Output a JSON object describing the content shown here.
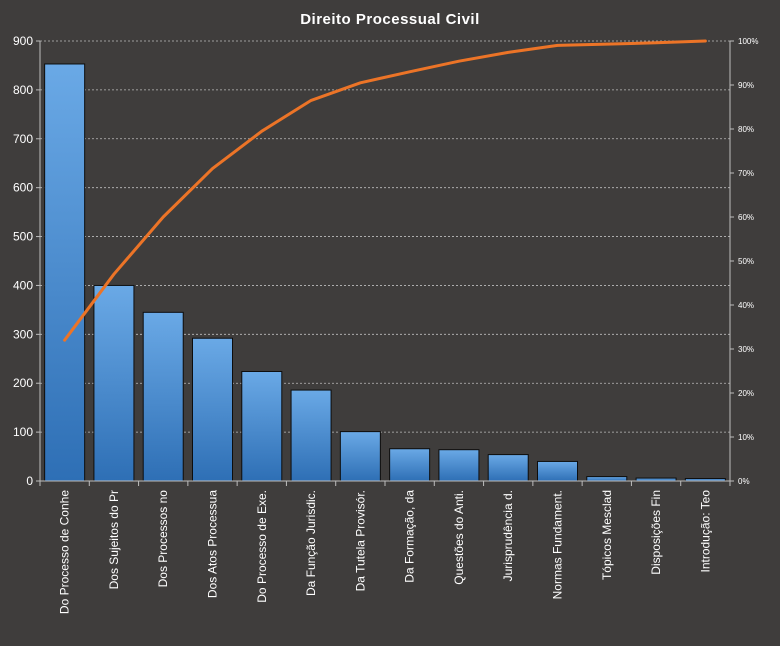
{
  "chart_data": {
    "type": "bar",
    "title": "Direito  Processual  Civil",
    "categories": [
      "Do Processo de Conhe",
      "Dos Sujeitos do Pr",
      "Dos Processos no",
      "Dos Atos Processua",
      "Do Processo de Exe.",
      "Da Função Jurisdic.",
      "Da Tutela Provisór.",
      "Da Formação, da",
      "Questões do Anti.",
      "Jurisprudência d.",
      "Normas Fundament.",
      "Tópicos Mesclad",
      "Disposições Fin",
      "Introdução: Teo"
    ],
    "series": [
      {
        "values": [
          853,
          400,
          345,
          292,
          224,
          186,
          101,
          66,
          64,
          54,
          40,
          9,
          6,
          5
        ]
      },
      {
        "values": [
          32.0,
          47.0,
          60.0,
          71.0,
          79.5,
          86.5,
          90.5,
          93.0,
          95.4,
          97.4,
          99.0,
          99.3,
          99.6,
          100.0
        ]
      }
    ],
    "ylim": [
      0,
      900
    ],
    "yticks": [
      "0",
      "100",
      "200",
      "300",
      "400",
      "500",
      "600",
      "700",
      "800",
      "900"
    ],
    "y2lim": [
      0,
      100
    ],
    "y2ticks": [
      "0%",
      "10%",
      "20%",
      "30%",
      "40%",
      "50%",
      "60%",
      "70%",
      "80%",
      "90%",
      "100%"
    ],
    "grid": true,
    "legend": "none",
    "colors": {
      "background": "#3f3d3c",
      "bar_top": "#6aa9e6",
      "bar_bottom": "#2e6fb5",
      "bar_edge": "#0d0d0d",
      "line": "#ec7427",
      "grid": "#bdbdbd",
      "axis": "#bdbdbd",
      "text": "#ffffff"
    }
  }
}
